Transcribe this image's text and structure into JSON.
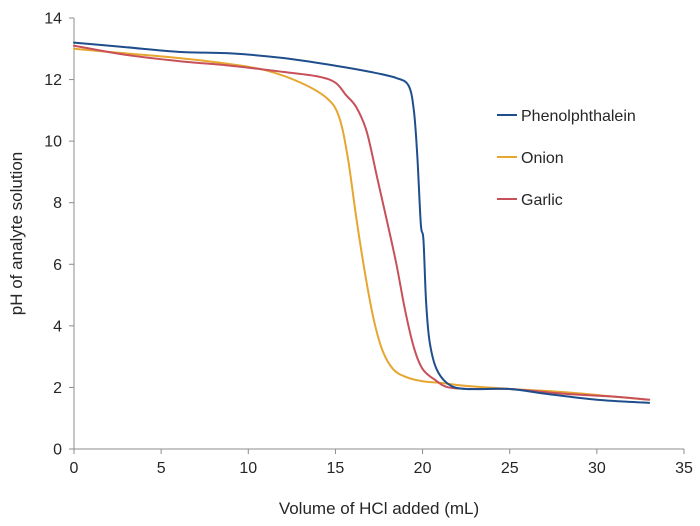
{
  "chart_data": {
    "type": "line",
    "title": "",
    "xlabel": "Volume of HCl added (mL)",
    "ylabel": "pH of analyte solution",
    "xlim": [
      0,
      35
    ],
    "ylim": [
      0,
      14
    ],
    "x_ticks": [
      0,
      5,
      10,
      15,
      20,
      25,
      30,
      35
    ],
    "y_ticks": [
      0,
      2,
      4,
      6,
      8,
      10,
      12,
      14
    ],
    "grid": false,
    "legend_position": "right",
    "series": [
      {
        "name": "Phenolphthalein",
        "color": "#1f4e8c",
        "points": [
          [
            0,
            13.2
          ],
          [
            3,
            13.05
          ],
          [
            6,
            12.9
          ],
          [
            9,
            12.85
          ],
          [
            12,
            12.7
          ],
          [
            15,
            12.45
          ],
          [
            17,
            12.25
          ],
          [
            18.5,
            12.05
          ],
          [
            19.2,
            11.8
          ],
          [
            19.5,
            11.0
          ],
          [
            19.7,
            9.5
          ],
          [
            19.9,
            7.3
          ],
          [
            20.05,
            6.8
          ],
          [
            20.2,
            4.8
          ],
          [
            20.4,
            3.5
          ],
          [
            20.8,
            2.6
          ],
          [
            21.5,
            2.1
          ],
          [
            22.5,
            1.95
          ],
          [
            25,
            1.95
          ],
          [
            27,
            1.8
          ],
          [
            30,
            1.6
          ],
          [
            33,
            1.5
          ]
        ]
      },
      {
        "name": "Onion",
        "color": "#e6a630",
        "points": [
          [
            0,
            13.0
          ],
          [
            3,
            12.85
          ],
          [
            6,
            12.7
          ],
          [
            9,
            12.5
          ],
          [
            11,
            12.3
          ],
          [
            13,
            11.9
          ],
          [
            14.5,
            11.4
          ],
          [
            15.2,
            10.8
          ],
          [
            15.7,
            9.5
          ],
          [
            16.2,
            7.5
          ],
          [
            16.7,
            5.7
          ],
          [
            17.2,
            4.2
          ],
          [
            17.7,
            3.2
          ],
          [
            18.3,
            2.6
          ],
          [
            19,
            2.35
          ],
          [
            20,
            2.2
          ],
          [
            21,
            2.15
          ],
          [
            22.5,
            2.05
          ],
          [
            25,
            1.95
          ],
          [
            28,
            1.85
          ],
          [
            31,
            1.7
          ],
          [
            33,
            1.6
          ]
        ]
      },
      {
        "name": "Garlic",
        "color": "#c8505a",
        "points": [
          [
            0,
            13.1
          ],
          [
            3,
            12.8
          ],
          [
            6,
            12.6
          ],
          [
            9,
            12.45
          ],
          [
            12,
            12.25
          ],
          [
            14,
            12.1
          ],
          [
            15,
            11.9
          ],
          [
            15.6,
            11.5
          ],
          [
            16.2,
            11.1
          ],
          [
            16.8,
            10.3
          ],
          [
            17.4,
            8.8
          ],
          [
            18,
            7.3
          ],
          [
            18.5,
            6.0
          ],
          [
            19,
            4.5
          ],
          [
            19.5,
            3.3
          ],
          [
            20,
            2.6
          ],
          [
            20.7,
            2.25
          ],
          [
            21.5,
            2.0
          ],
          [
            23,
            1.95
          ],
          [
            25,
            1.95
          ],
          [
            28,
            1.8
          ],
          [
            31,
            1.7
          ],
          [
            33,
            1.6
          ]
        ]
      }
    ]
  }
}
